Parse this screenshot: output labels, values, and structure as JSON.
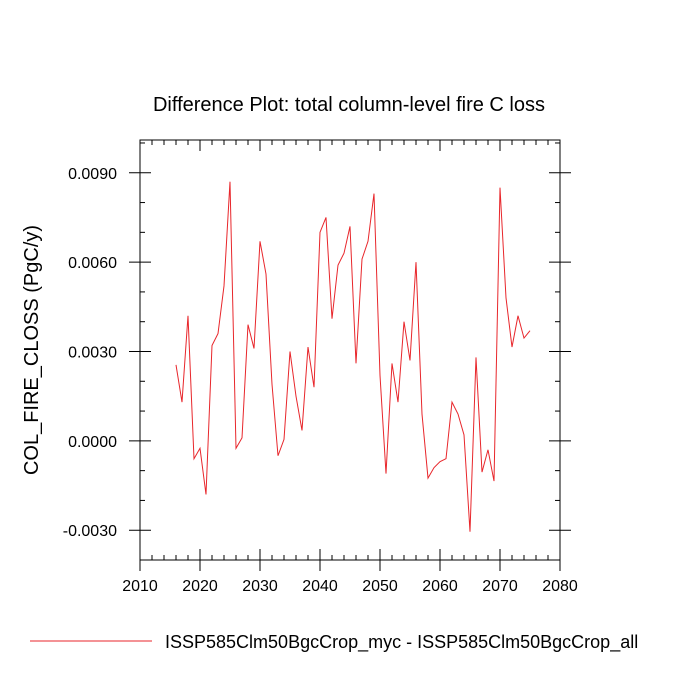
{
  "chart_data": {
    "type": "line",
    "title": "Difference Plot: total column-level fire C loss",
    "xlabel": "",
    "ylabel": "COL_FIRE_CLOSS  (PgC/y)",
    "xlim": [
      2010,
      2080
    ],
    "ylim": [
      -0.004,
      0.0101
    ],
    "x_ticks": [
      2010,
      2020,
      2030,
      2040,
      2050,
      2060,
      2070,
      2080
    ],
    "x_tick_labels": [
      "2010",
      "2020",
      "2030",
      "2040",
      "2050",
      "2060",
      "2070",
      "2080"
    ],
    "y_ticks": [
      -0.003,
      0.0,
      0.003,
      0.006,
      0.009
    ],
    "y_tick_labels": [
      "-0.0030",
      "0.0000",
      "0.0030",
      "0.0060",
      "0.0090"
    ],
    "grid": false,
    "legend_position": "bottom",
    "series": [
      {
        "name": "ISSP585Clm50BgcCrop_myc - ISSP585Clm50BgcCrop_all",
        "color": "#e8262b",
        "x": [
          2016,
          2017,
          2018,
          2019,
          2020,
          2021,
          2022,
          2023,
          2024,
          2025,
          2026,
          2027,
          2028,
          2029,
          2030,
          2031,
          2032,
          2033,
          2034,
          2035,
          2036,
          2037,
          2038,
          2039,
          2040,
          2041,
          2042,
          2043,
          2044,
          2045,
          2046,
          2047,
          2048,
          2049,
          2050,
          2051,
          2052,
          2053,
          2054,
          2055,
          2056,
          2057,
          2058,
          2059,
          2060,
          2061,
          2062,
          2063,
          2064,
          2065,
          2066,
          2067,
          2068,
          2069,
          2070,
          2071,
          2072,
          2073,
          2074,
          2075
        ],
        "values": [
          0.00255,
          0.0013,
          0.0042,
          -0.0006,
          -0.00025,
          -0.0018,
          0.0032,
          0.0036,
          0.0052,
          0.0087,
          -0.00025,
          0.0001,
          0.0039,
          0.0031,
          0.0067,
          0.0056,
          0.0019,
          -0.0005,
          5e-05,
          0.003,
          0.0015,
          0.00035,
          0.00315,
          0.0018,
          0.007,
          0.0075,
          0.0041,
          0.0059,
          0.0063,
          0.0072,
          0.0026,
          0.0061,
          0.0067,
          0.0083,
          0.0022,
          -0.0011,
          0.0026,
          0.0013,
          0.004,
          0.0027,
          0.006,
          0.0009,
          -0.00125,
          -0.0009,
          -0.0007,
          -0.0006,
          0.0013,
          0.0009,
          0.0002,
          -0.00305,
          0.0028,
          -0.00105,
          -0.0003,
          -0.00135,
          0.0085,
          0.0048,
          0.00315,
          0.0042,
          0.00345,
          0.0037
        ]
      }
    ]
  }
}
